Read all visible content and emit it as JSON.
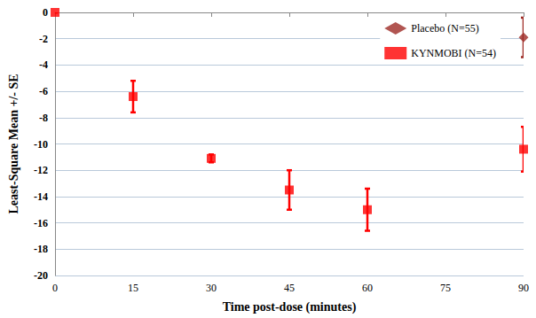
{
  "chart_data": {
    "type": "scatter",
    "x_label": "Time post-dose (minutes)",
    "y_label": "Least-Square Mean +/- SE",
    "xlim": [
      0,
      90
    ],
    "xticks": [
      0,
      15,
      30,
      45,
      60,
      75,
      90
    ],
    "ylim": [
      -20,
      0
    ],
    "yticks": [
      -20,
      -18,
      -16,
      -14,
      -12,
      -10,
      -8,
      -6,
      -4,
      -2,
      0
    ],
    "grid": true,
    "legend": "upper right",
    "series": [
      {
        "name": "Placebo (N=55)",
        "color": "#9e2b25",
        "marker": "diamond",
        "x": [
          90
        ],
        "values": [
          -1.9
        ],
        "errors": [
          1.5
        ]
      },
      {
        "name": "KYNMOBI (N=54)",
        "color": "#ff0000",
        "marker": "square",
        "x": [
          0,
          15,
          30,
          45,
          60,
          90
        ],
        "values": [
          0,
          -6.4,
          -11.1,
          -13.5,
          -15.0,
          -10.4
        ],
        "errors": [
          0,
          1.2,
          0.3,
          1.5,
          1.6,
          1.7
        ]
      }
    ]
  }
}
